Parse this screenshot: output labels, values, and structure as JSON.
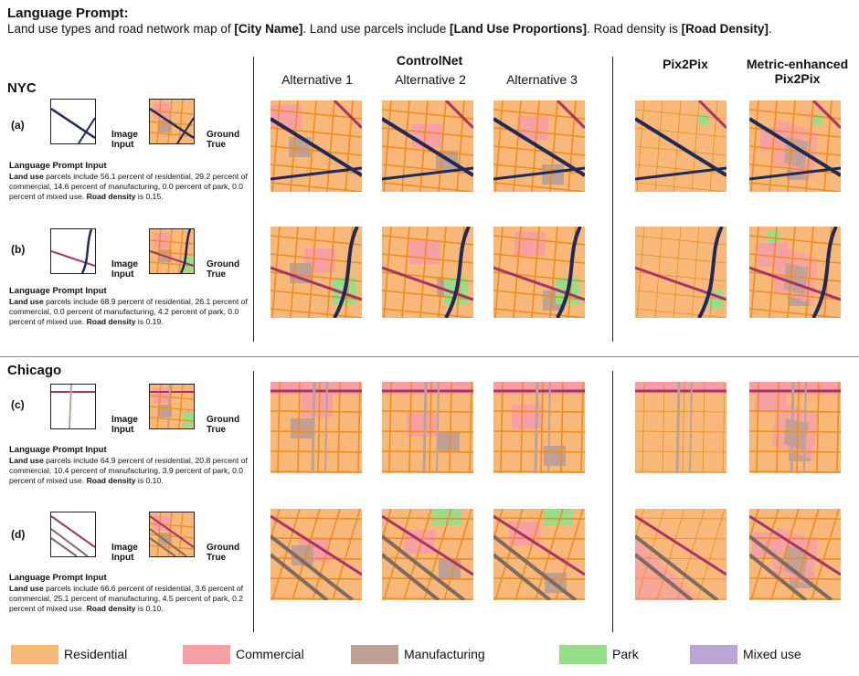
{
  "header": {
    "title": "Language Prompt:",
    "line_a": "Land use types and road network map of ",
    "city_token": "[City Name]",
    "line_b": ". Land use parcels include ",
    "landuse_token": "[Land Use Proportions]",
    "line_c": ". Road density is ",
    "density_token": "[Road Density]",
    "line_d": "."
  },
  "columns": {
    "controlnet": "ControlNet",
    "alt1": "Alternative 1",
    "alt2": "Alternative 2",
    "alt3": "Alternative 3",
    "pix2pix": "Pix2Pix",
    "metric_line1": "Metric-enhanced",
    "metric_line2": "Pix2Pix"
  },
  "cities": {
    "nyc": "NYC",
    "chicago": "Chicago"
  },
  "input_labels": {
    "image1": "Image",
    "image2": "Input",
    "truth1": "Ground",
    "truth2": "True",
    "lpi_heading": "Language Prompt Input",
    "land_use": "Land use",
    "road_density": "Road density"
  },
  "rows": [
    {
      "label": "(a)",
      "p1": " parcels include 56.1 percent of residential, 29.2 percent of commercial, 14.6 percent of manufacturing, 0.0 percent of park, 0.0 percent of mixed use. ",
      "p2": " is 0.15."
    },
    {
      "label": "(b)",
      "p1": " parcels include 68.9 percent of residential, 26.1 percent of commercial, 0.0 percent of manufacturing, 4.2 percent of park, 0.0 percent of mixed use.  ",
      "p2": " is 0.19."
    },
    {
      "label": "(c)",
      "p1": " parcels include 64.9 percent of residential, 20.8 percent of commercial, 10.4 percent of manufacturing, 3.9 percent of park, 0.0 percent of mixed use. ",
      "p2": " is 0.10."
    },
    {
      "label": "(d)",
      "p1": " parcels include 66.6 percent of residential, 3.6 percent of commercial, 25.1 percent of manufacturing, 4.5 percent of park, 0.2 percent of mixed use. ",
      "p2": " is 0.10."
    }
  ],
  "legend": [
    {
      "label": "Residential",
      "color": "#f7b87a"
    },
    {
      "label": "Commercial",
      "color": "#f7a0a3"
    },
    {
      "label": "Manufacturing",
      "color": "#bfa095"
    },
    {
      "label": "Park",
      "color": "#96de8a"
    },
    {
      "label": "Mixed use",
      "color": "#bba6d3"
    }
  ],
  "colors": {
    "residential": "#f7b87a",
    "commercial": "#f7a0a3",
    "manufacturing": "#bfa095",
    "park": "#96de8a",
    "road": "#f08c1e",
    "arterial": "#a8336a",
    "rail": "#1e2a5a"
  }
}
